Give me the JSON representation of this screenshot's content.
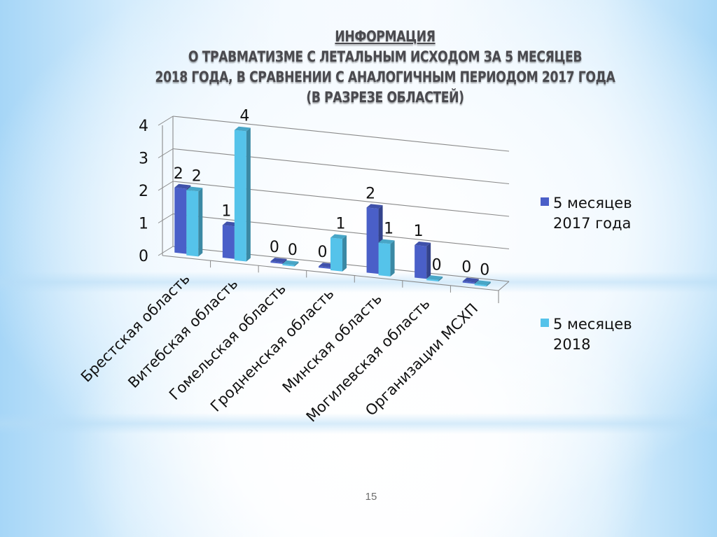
{
  "slide": {
    "title_lines": [
      "ИНФОРМАЦИЯ",
      "О ТРАВМАТИЗМЕ С ЛЕТАЛЬНЫМ ИСХОДОМ  ЗА 5 МЕСЯЦЕВ",
      "2018 ГОДА, В СРАВНЕНИИ С АНАЛОГИЧНЫМ ПЕРИОДОМ 2017 ГОДА",
      "(В РАЗРЕЗЕ ОБЛАСТЕЙ)"
    ],
    "page_number": "15"
  },
  "legend": {
    "items": [
      {
        "line1": "5 месяцев",
        "line2": "2017 года",
        "color": "#4a5fc8"
      },
      {
        "line1": "5 месяцев",
        "line2": "2018",
        "color": "#55c3ea"
      }
    ]
  },
  "chart_data": {
    "type": "bar",
    "style": "3d-clustered-column",
    "title": "ИНФОРМАЦИЯ О ТРАВМАТИЗМЕ С ЛЕТАЛЬНЫМ ИСХОДОМ ЗА 5 МЕСЯЦЕВ 2018 ГОДА, В СРАВНЕНИИ С АНАЛОГИЧНЫМ ПЕРИОДОМ 2017 ГОДА (В РАЗРЕЗЕ ОБЛАСТЕЙ)",
    "categories": [
      "Брестская область",
      "Витебская область",
      "Гомельская область",
      "Гродненская область",
      "Минская область",
      "Могилевская область",
      "Организации МСХП"
    ],
    "series": [
      {
        "name": "5 месяцев 2017 года",
        "color": "#4a5fc8",
        "values": [
          2,
          1,
          0,
          0,
          2,
          1,
          0
        ]
      },
      {
        "name": "5 месяцев 2018",
        "color": "#55c3ea",
        "values": [
          2,
          4,
          0,
          1,
          1,
          0,
          0
        ]
      }
    ],
    "xlabel": "",
    "ylabel": "",
    "ylim": [
      0,
      4
    ],
    "yticks": [
      0,
      1,
      2,
      3,
      4
    ],
    "grid": true,
    "data_labels": true,
    "legend_position": "right"
  }
}
